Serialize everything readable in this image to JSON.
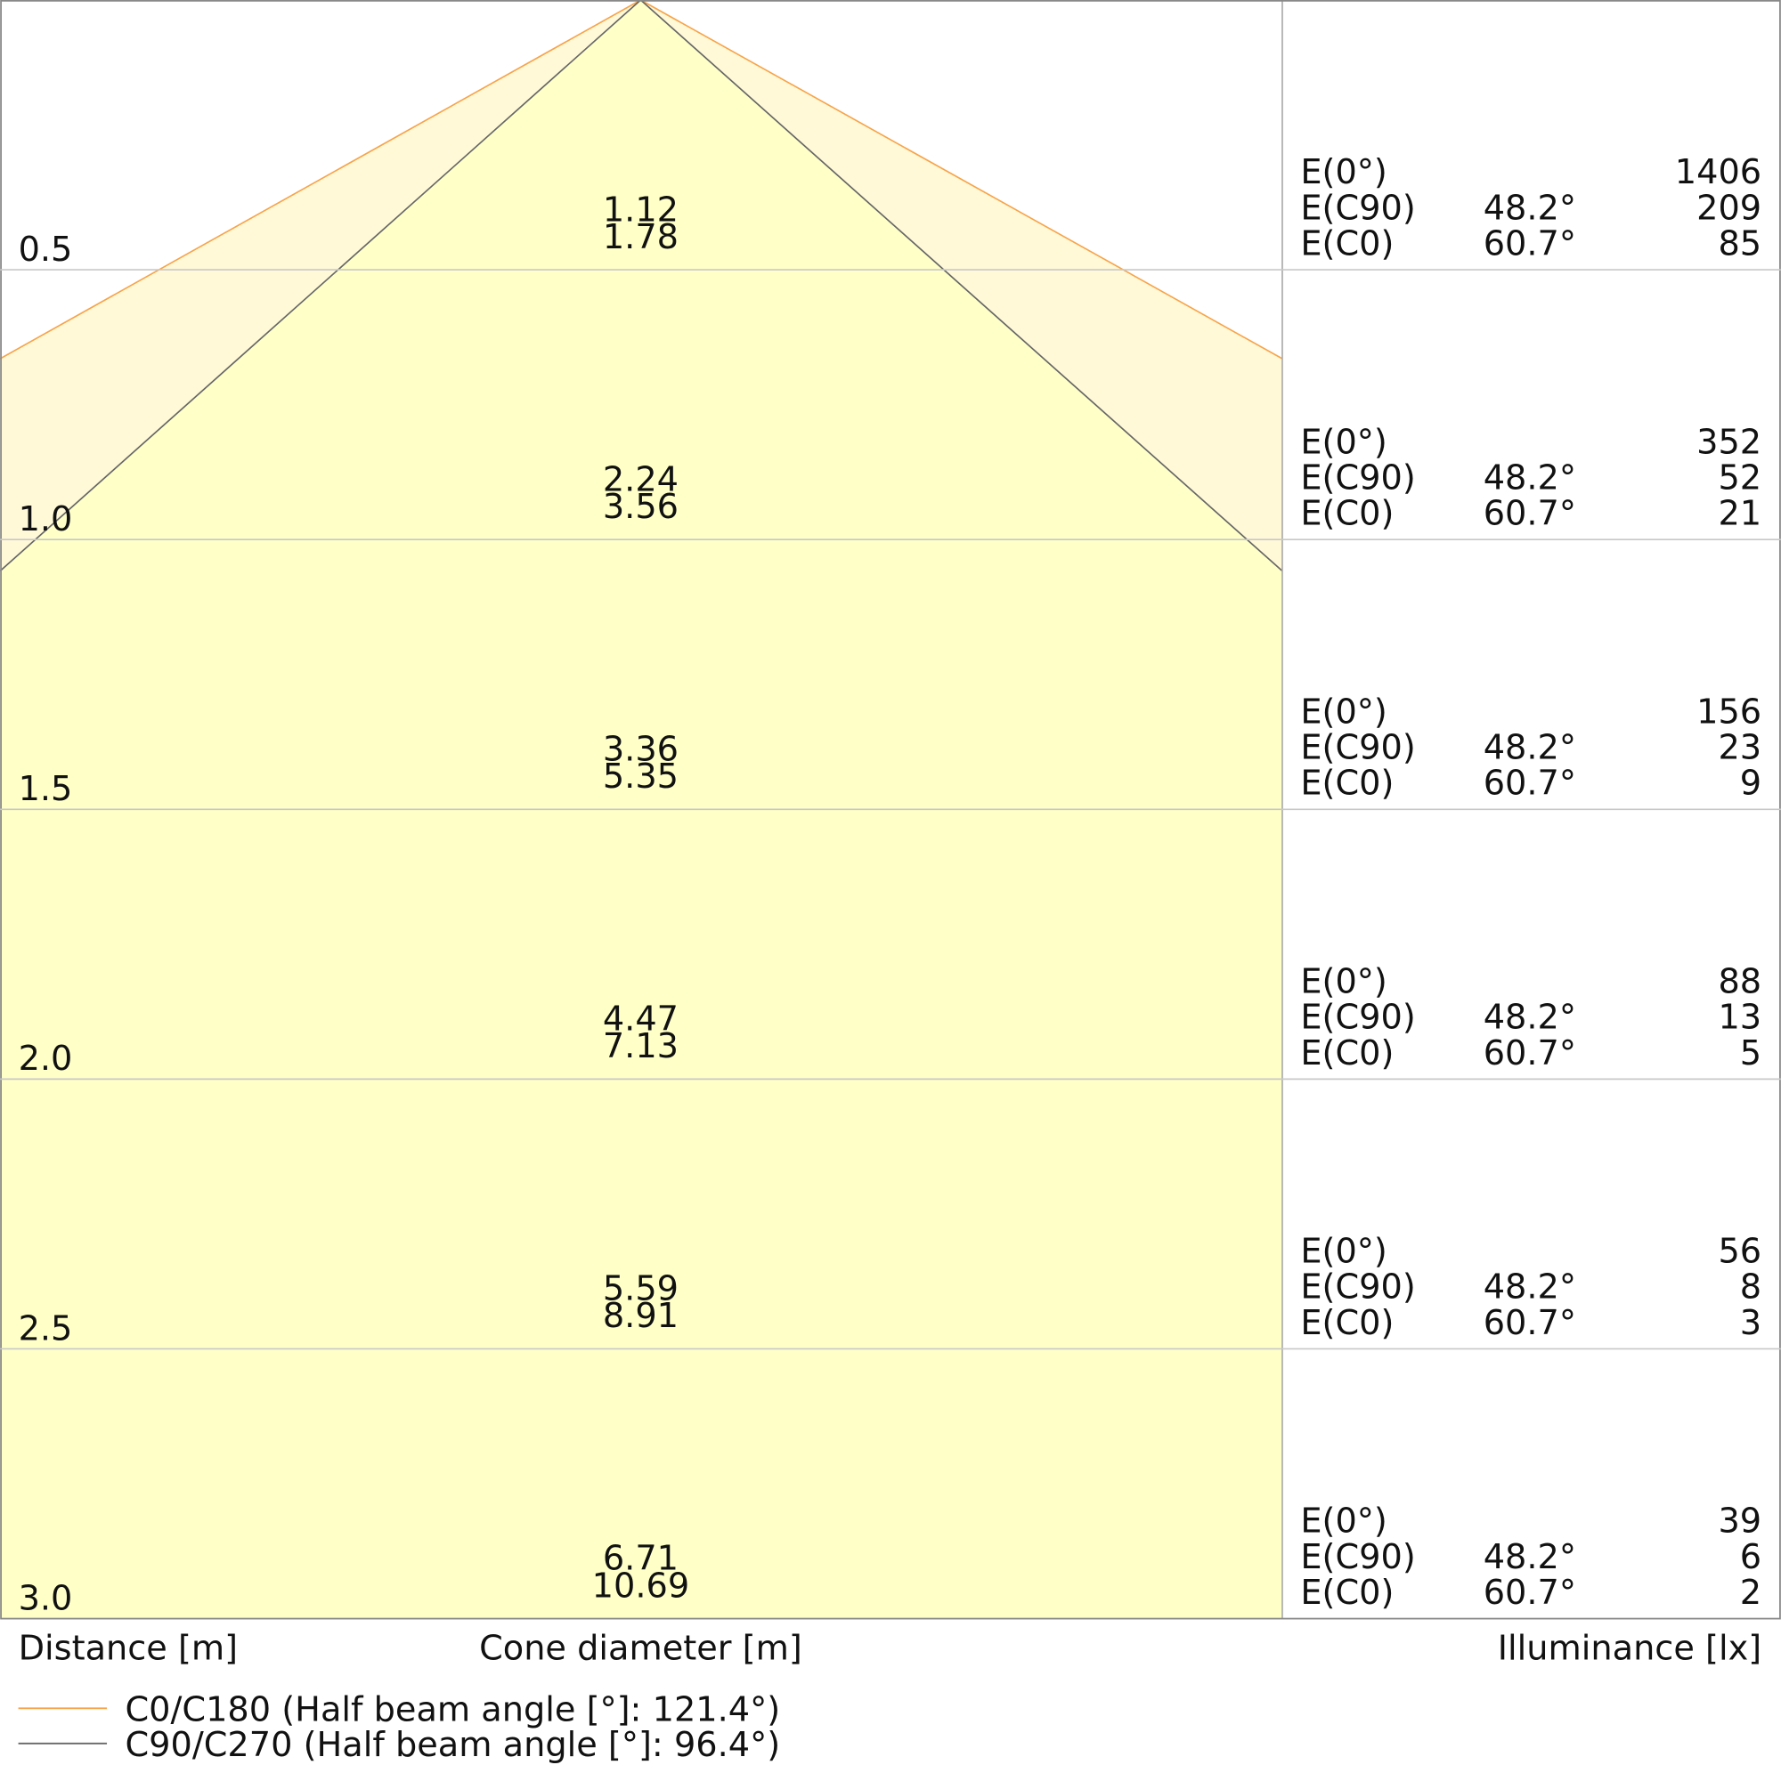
{
  "rows": [
    {
      "distance": "0.5",
      "diameters": [
        "1.12",
        "1.78"
      ],
      "illuminance": [
        {
          "label": "E(0°)",
          "value": "1406"
        },
        {
          "label": "E(C90)",
          "angle": "48.2°",
          "value": "209"
        },
        {
          "label": "E(C0)",
          "angle": "60.7°",
          "value": "85"
        }
      ]
    },
    {
      "distance": "1.0",
      "diameters": [
        "2.24",
        "3.56"
      ],
      "illuminance": [
        {
          "label": "E(0°)",
          "value": "352"
        },
        {
          "label": "E(C90)",
          "angle": "48.2°",
          "value": "52"
        },
        {
          "label": "E(C0)",
          "angle": "60.7°",
          "value": "21"
        }
      ]
    },
    {
      "distance": "1.5",
      "diameters": [
        "3.36",
        "5.35"
      ],
      "illuminance": [
        {
          "label": "E(0°)",
          "value": "156"
        },
        {
          "label": "E(C90)",
          "angle": "48.2°",
          "value": "23"
        },
        {
          "label": "E(C0)",
          "angle": "60.7°",
          "value": "9"
        }
      ]
    },
    {
      "distance": "2.0",
      "diameters": [
        "4.47",
        "7.13"
      ],
      "illuminance": [
        {
          "label": "E(0°)",
          "value": "88"
        },
        {
          "label": "E(C90)",
          "angle": "48.2°",
          "value": "13"
        },
        {
          "label": "E(C0)",
          "angle": "60.7°",
          "value": "5"
        }
      ]
    },
    {
      "distance": "2.5",
      "diameters": [
        "5.59",
        "8.91"
      ],
      "illuminance": [
        {
          "label": "E(0°)",
          "value": "56"
        },
        {
          "label": "E(C90)",
          "angle": "48.2°",
          "value": "8"
        },
        {
          "label": "E(C0)",
          "angle": "60.7°",
          "value": "3"
        }
      ]
    },
    {
      "distance": "3.0",
      "diameters": [
        "6.71",
        "10.69"
      ],
      "illuminance": [
        {
          "label": "E(0°)",
          "value": "39"
        },
        {
          "label": "E(C90)",
          "angle": "48.2°",
          "value": "6"
        },
        {
          "label": "E(C0)",
          "angle": "60.7°",
          "value": "2"
        }
      ]
    }
  ],
  "axis_labels": {
    "distance": "Distance [m]",
    "diameter": "Cone diameter [m]",
    "illuminance": "Illuminance [lx]"
  },
  "legend": [
    {
      "name": "C0/C180 (Half beam angle [°]: 121.4°)",
      "color": "#f7a44a"
    },
    {
      "name": "C90/C270 (Half beam angle [°]: 96.4°)",
      "color": "#666666"
    }
  ]
}
